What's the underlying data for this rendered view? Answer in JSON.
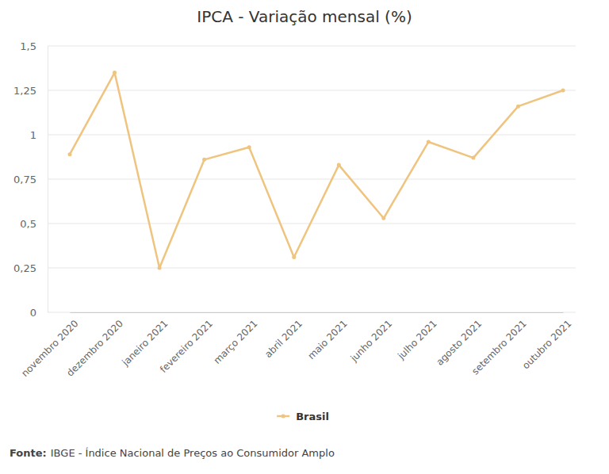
{
  "chart_data": {
    "type": "line",
    "title": "IPCA - Variação mensal (%)",
    "categories": [
      "novembro 2020",
      "dezembro 2020",
      "janeiro 2021",
      "fevereiro 2021",
      "março 2021",
      "abril 2021",
      "maio 2021",
      "junho 2021",
      "julho 2021",
      "agosto 2021",
      "setembro 2021",
      "outubro 2021"
    ],
    "series": [
      {
        "name": "Brasil",
        "color": "#efc47f",
        "marker": "circle",
        "values": [
          0.89,
          1.35,
          0.25,
          0.86,
          0.93,
          0.31,
          0.83,
          0.53,
          0.96,
          0.87,
          1.16,
          1.25
        ]
      }
    ],
    "ylim": [
      0,
      1.5
    ],
    "yticks": [
      0,
      {
        "value": 0.25,
        "label": "0,25"
      },
      {
        "value": 0.5,
        "label": "0,5"
      },
      {
        "value": 0.75,
        "label": "0,75"
      },
      1,
      {
        "value": 1.25,
        "label": "1,25"
      },
      {
        "value": 1.5,
        "label": "1,5"
      }
    ],
    "grid": true,
    "legend": "bottom",
    "source_label": "Fonte:",
    "source": "IBGE - Índice Nacional de Preços ao Consumidor Amplo"
  }
}
